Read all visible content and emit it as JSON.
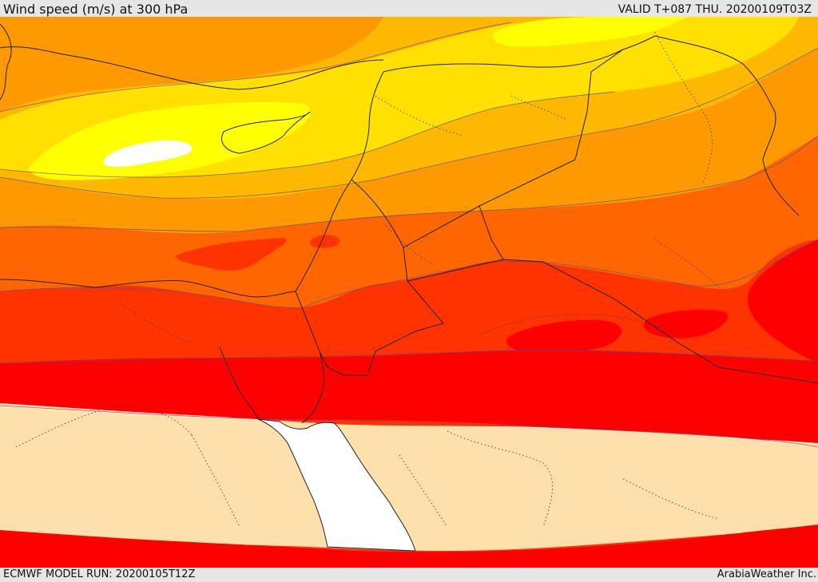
{
  "header": {
    "title": "Wind speed (m/s) at 300 hPa",
    "valid": "VALID T+087 THU. 20200109T03Z"
  },
  "footer": {
    "model_run": "ECMWF MODEL RUN: 20200105T12Z",
    "credit": "ArabiaWeather Inc."
  },
  "map": {
    "palette": {
      "calm": "#ffffff",
      "bright_yellow": "#ffff00",
      "yellow": "#ffe000",
      "light_orange": "#ffb800",
      "orange": "#ff9900",
      "dark_orange": "#ff6600",
      "red_orange": "#ff3300",
      "red": "#ff0000",
      "low": "#fde0ac",
      "sea": "#ffffff"
    },
    "contour_color": "#5050a0",
    "border_color": "#222222"
  }
}
